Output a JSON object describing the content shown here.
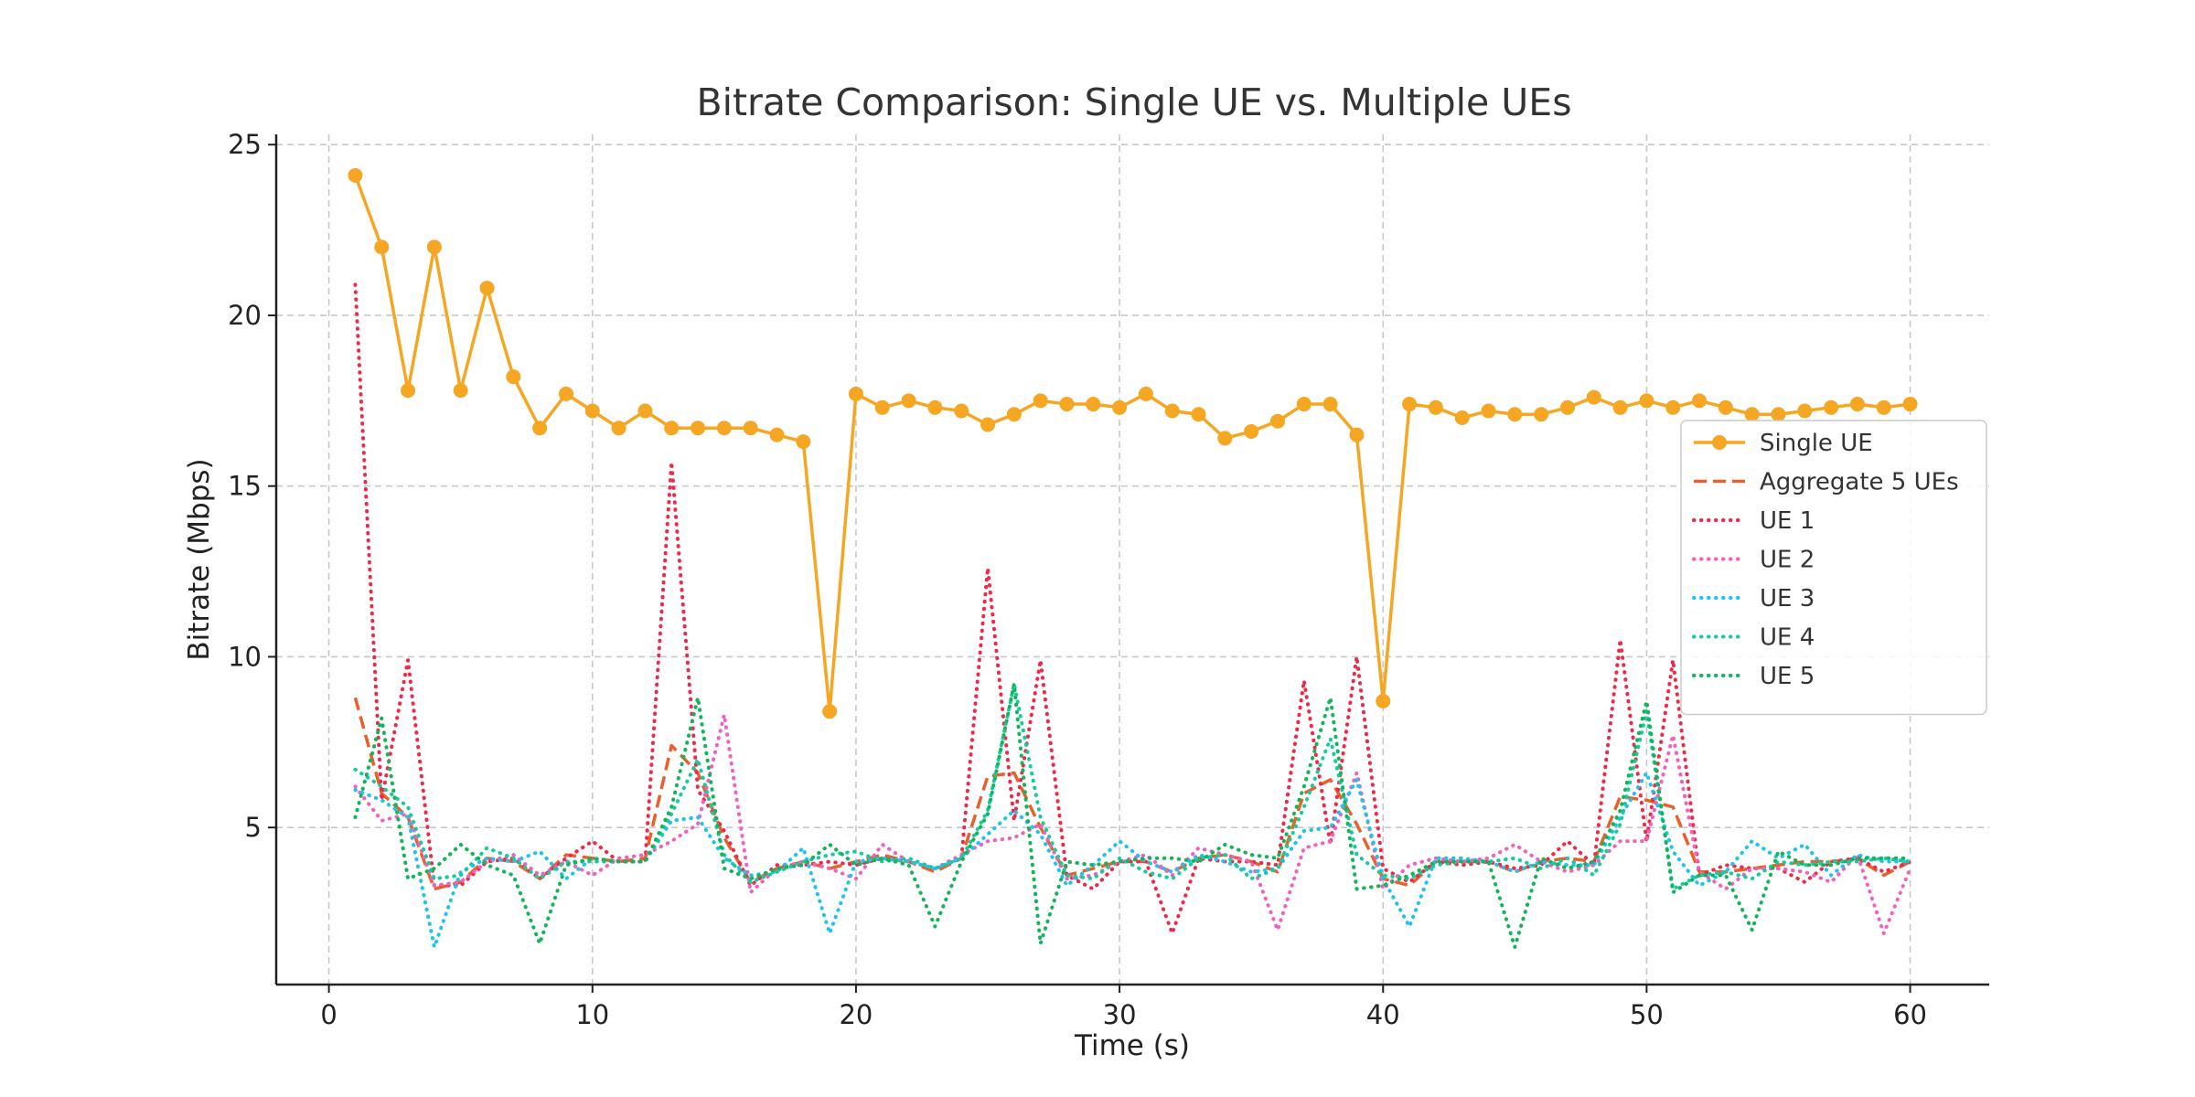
{
  "chart_data": {
    "type": "line",
    "title": "Bitrate Comparison: Single UE vs. Multiple UEs",
    "xlabel": "Time (s)",
    "ylabel": "Bitrate (Mbps)",
    "xlim": [
      -2,
      63
    ],
    "ylim": [
      0.4,
      25.3
    ],
    "xticks": [
      0,
      10,
      20,
      30,
      40,
      50,
      60
    ],
    "yticks": [
      5,
      10,
      15,
      20,
      25
    ],
    "grid": true,
    "legend_position": "center-right",
    "x": [
      1,
      2,
      3,
      4,
      5,
      6,
      7,
      8,
      9,
      10,
      11,
      12,
      13,
      14,
      15,
      16,
      17,
      18,
      19,
      20,
      21,
      22,
      23,
      24,
      25,
      26,
      27,
      28,
      29,
      30,
      31,
      32,
      33,
      34,
      35,
      36,
      37,
      38,
      39,
      40,
      41,
      42,
      43,
      44,
      45,
      46,
      47,
      48,
      49,
      50,
      51,
      52,
      53,
      54,
      55,
      56,
      57,
      58,
      59,
      60
    ],
    "series": [
      {
        "name": "Single UE",
        "color": "#f5a623",
        "style": "solid",
        "marker": "circle",
        "values": [
          24.1,
          22.0,
          17.8,
          22.0,
          17.8,
          20.8,
          18.2,
          16.7,
          17.7,
          17.2,
          16.7,
          17.2,
          16.7,
          16.7,
          16.7,
          16.7,
          16.5,
          16.3,
          8.4,
          17.7,
          17.3,
          17.5,
          17.3,
          17.2,
          16.8,
          17.1,
          17.5,
          17.4,
          17.4,
          17.3,
          17.7,
          17.2,
          17.1,
          16.4,
          16.6,
          16.9,
          17.4,
          17.4,
          16.5,
          8.7,
          17.4,
          17.3,
          17.0,
          17.2,
          17.1,
          17.1,
          17.3,
          17.6,
          17.3,
          17.5,
          17.3,
          17.5,
          17.3,
          17.1,
          17.1,
          17.2,
          17.3,
          17.4,
          17.3,
          17.4
        ]
      },
      {
        "name": "Aggregate 5 UEs",
        "color": "#e8612c",
        "style": "dashed",
        "marker": "none",
        "values": [
          8.8,
          6.0,
          5.3,
          3.2,
          3.4,
          4.1,
          4.0,
          3.5,
          4.2,
          4.1,
          4.0,
          4.1,
          7.4,
          6.6,
          4.7,
          3.4,
          3.8,
          4.0,
          3.8,
          4.0,
          4.2,
          4.0,
          3.7,
          4.1,
          6.5,
          6.6,
          5.0,
          3.6,
          3.8,
          4.0,
          4.0,
          3.7,
          4.1,
          4.2,
          4.0,
          3.7,
          6.0,
          6.4,
          5.1,
          3.5,
          3.3,
          4.0,
          4.0,
          4.0,
          3.7,
          4.0,
          4.1,
          4.0,
          5.9,
          5.8,
          5.6,
          3.7,
          3.7,
          3.8,
          3.9,
          4.0,
          4.0,
          4.1,
          3.6,
          4.0
        ]
      },
      {
        "name": "UE 1",
        "color": "#f0284a",
        "style": "dotted",
        "marker": "none",
        "values": [
          20.9,
          5.8,
          9.9,
          3.3,
          3.3,
          4.0,
          4.1,
          3.5,
          4.1,
          4.6,
          4.0,
          4.0,
          15.7,
          6.1,
          4.9,
          3.3,
          3.9,
          3.9,
          4.0,
          3.9,
          4.1,
          4.0,
          3.8,
          4.1,
          12.6,
          5.2,
          9.9,
          3.6,
          3.2,
          4.0,
          4.0,
          1.9,
          4.1,
          4.0,
          4.0,
          3.9,
          9.3,
          4.5,
          10.0,
          3.8,
          3.4,
          4.0,
          3.9,
          4.0,
          3.8,
          3.9,
          4.6,
          3.9,
          10.5,
          4.6,
          9.9,
          3.6,
          3.9,
          3.8,
          3.8,
          3.4,
          4.0,
          4.1,
          3.7,
          4.0
        ]
      },
      {
        "name": "UE 2",
        "color": "#f062c0",
        "style": "dotted",
        "marker": "none",
        "values": [
          6.2,
          5.2,
          5.4,
          3.3,
          3.4,
          4.0,
          4.2,
          3.6,
          4.0,
          3.6,
          4.1,
          4.2,
          4.6,
          5.1,
          8.3,
          3.1,
          3.8,
          4.0,
          3.8,
          3.5,
          4.5,
          4.0,
          3.8,
          4.2,
          4.6,
          4.7,
          5.1,
          3.5,
          3.6,
          4.0,
          4.2,
          3.6,
          4.4,
          4.2,
          4.0,
          2.0,
          4.4,
          4.6,
          6.6,
          3.2,
          3.9,
          4.1,
          4.0,
          4.1,
          4.5,
          4.0,
          3.7,
          3.9,
          4.6,
          4.6,
          7.7,
          3.7,
          3.2,
          3.8,
          3.8,
          3.7,
          3.4,
          4.2,
          1.9,
          3.8
        ]
      },
      {
        "name": "UE 3",
        "color": "#1ec3f0",
        "style": "dotted",
        "marker": "none",
        "values": [
          6.1,
          5.8,
          5.3,
          1.5,
          3.7,
          4.1,
          4.0,
          4.3,
          3.5,
          4.1,
          4.0,
          4.0,
          5.2,
          5.3,
          4.1,
          3.6,
          3.7,
          4.4,
          1.9,
          4.0,
          4.1,
          4.0,
          3.8,
          4.1,
          4.8,
          5.5,
          4.8,
          3.3,
          3.9,
          4.6,
          4.0,
          3.7,
          4.2,
          4.0,
          3.7,
          3.8,
          4.9,
          5.0,
          6.4,
          3.5,
          2.1,
          4.1,
          4.1,
          4.0,
          3.7,
          4.0,
          3.9,
          3.9,
          5.3,
          6.6,
          4.3,
          3.3,
          3.7,
          4.6,
          4.1,
          4.5,
          3.6,
          4.2,
          4.0,
          4.0
        ]
      },
      {
        "name": "UE 4",
        "color": "#14cca0",
        "style": "dotted",
        "marker": "none",
        "values": [
          6.7,
          6.2,
          5.6,
          3.5,
          3.6,
          4.4,
          4.1,
          3.5,
          4.0,
          4.0,
          4.0,
          4.0,
          5.4,
          7.0,
          4.2,
          3.4,
          3.7,
          4.0,
          4.2,
          4.3,
          4.0,
          4.1,
          3.8,
          4.1,
          5.5,
          9.2,
          5.3,
          3.6,
          3.5,
          4.1,
          3.7,
          3.5,
          4.1,
          4.2,
          3.5,
          3.8,
          5.6,
          7.6,
          4.2,
          3.6,
          3.5,
          3.9,
          4.0,
          4.0,
          4.1,
          3.8,
          4.1,
          3.6,
          5.1,
          8.4,
          3.2,
          3.6,
          3.7,
          3.5,
          4.0,
          3.9,
          4.0,
          4.0,
          4.1,
          4.0
        ]
      },
      {
        "name": "UE 5",
        "color": "#14b45a",
        "style": "dotted",
        "marker": "none",
        "values": [
          5.3,
          8.2,
          3.5,
          3.8,
          4.5,
          3.9,
          3.6,
          1.6,
          3.9,
          4.1,
          4.0,
          4.0,
          5.6,
          8.8,
          3.8,
          3.5,
          3.8,
          3.9,
          4.5,
          3.9,
          4.1,
          3.9,
          2.1,
          4.0,
          5.4,
          9.2,
          1.6,
          4.0,
          3.9,
          4.0,
          4.1,
          4.1,
          4.0,
          4.5,
          4.2,
          4.1,
          6.2,
          8.8,
          3.2,
          3.3,
          3.6,
          4.0,
          4.0,
          4.0,
          1.5,
          4.1,
          3.8,
          4.0,
          5.5,
          8.7,
          3.1,
          3.6,
          3.6,
          2.0,
          4.3,
          3.9,
          3.9,
          4.1,
          4.1,
          4.1
        ]
      }
    ]
  }
}
